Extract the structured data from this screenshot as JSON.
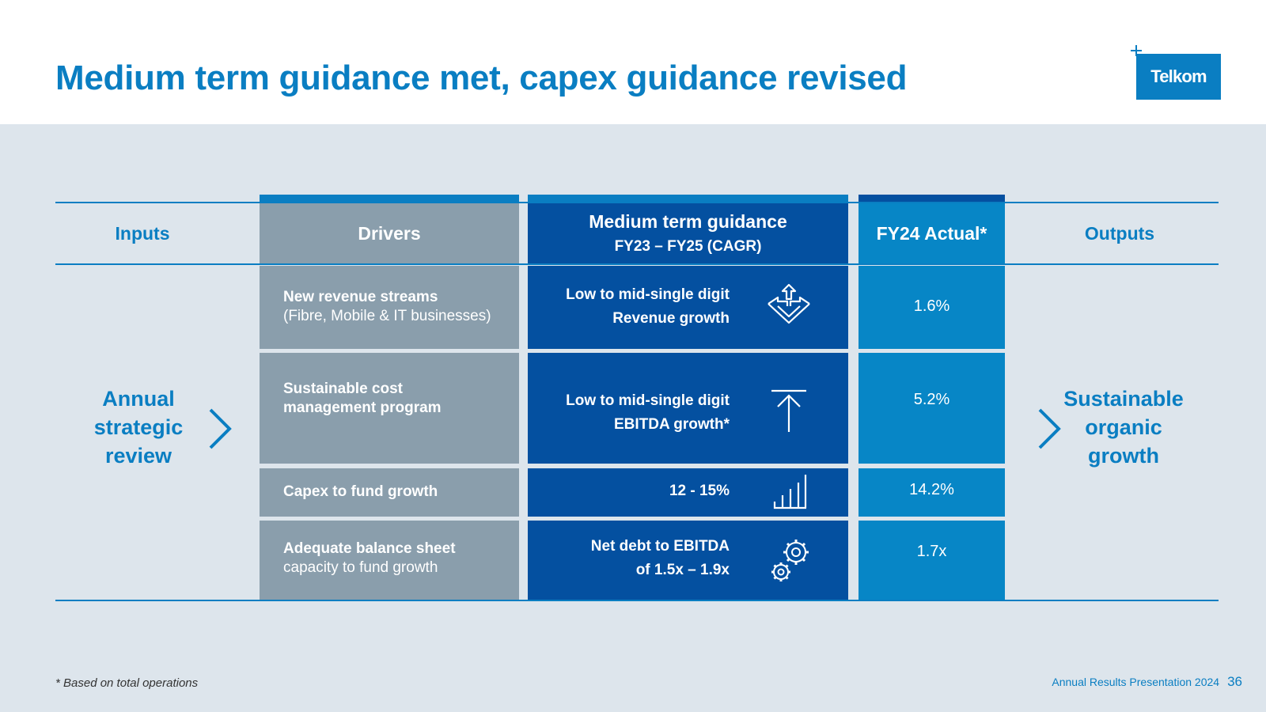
{
  "slide": {
    "title": "Medium term guidance met, capex guidance revised",
    "logo_text": "Telkom"
  },
  "columns": {
    "inputs": "Inputs",
    "drivers": "Drivers",
    "guidance_title": "Medium term guidance",
    "guidance_subtitle": "FY23 – FY25 (CAGR)",
    "actual": "FY24 Actual*",
    "outputs": "Outputs"
  },
  "inputs_label": [
    "Annual",
    "strategic",
    "review"
  ],
  "outputs_label": [
    "Sustainable",
    "organic",
    "growth"
  ],
  "rows": [
    {
      "driver_bold": "New revenue streams",
      "driver_normal": "(Fibre, Mobile & IT businesses)",
      "guidance_line1": "Low to mid-single digit",
      "guidance_line2": "Revenue growth",
      "icon": "expand-arrows-icon",
      "actual": "1.6%"
    },
    {
      "driver_bold": "Sustainable cost",
      "driver_bold2": "management program",
      "guidance_line1": "Low to mid-single digit",
      "guidance_line2": "EBITDA growth*",
      "icon": "arrow-up-to-line-icon",
      "actual": "5.2%"
    },
    {
      "driver_bold": "Capex to fund growth",
      "guidance_line1": "12 - 15%",
      "icon": "bar-chart-icon",
      "actual": "14.2%"
    },
    {
      "driver_bold": "Adequate balance sheet",
      "driver_normal": "capacity to fund growth",
      "guidance_line1": "Net debt to EBITDA",
      "guidance_line2": "of 1.5x – 1.9x",
      "icon": "gears-icon",
      "actual": "1.7x"
    }
  ],
  "footer": {
    "footnote": "*  Based on total operations",
    "presentation": "Annual Results Presentation 2024",
    "page": "36"
  },
  "colors": {
    "brand_blue": "#0a7ec2",
    "navy": "#0450a0",
    "grey": "#8a9eac",
    "background": "#dde5ec"
  }
}
